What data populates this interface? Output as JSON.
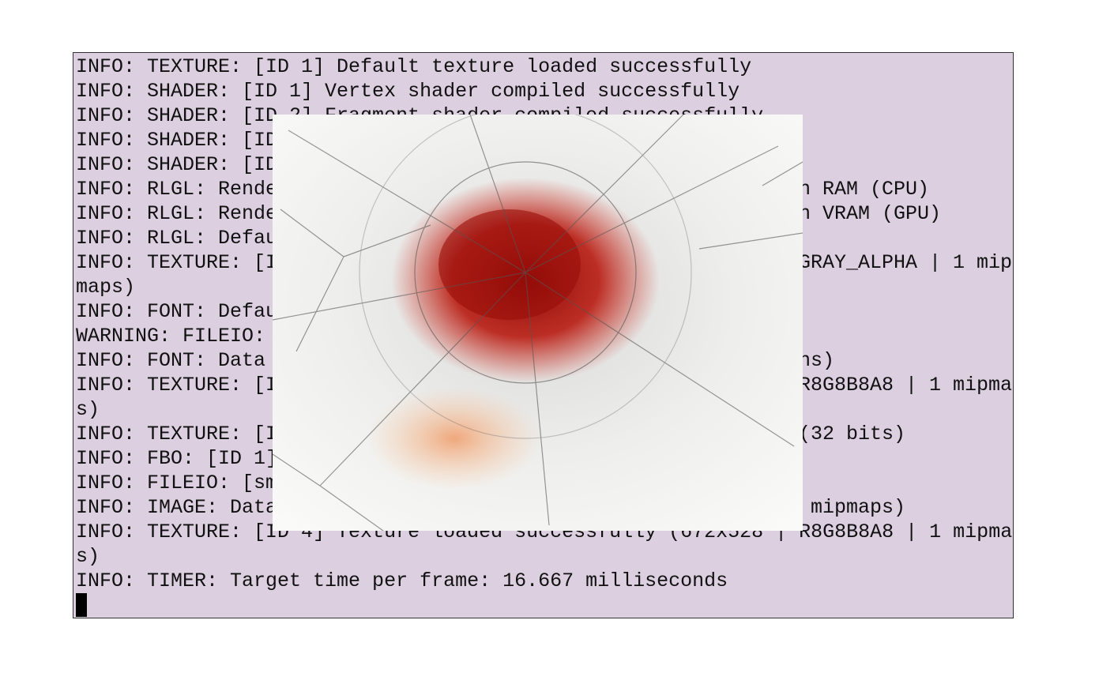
{
  "terminal": {
    "lines": [
      {
        "text": "INFO: TEXTURE: [ID 1] Default texture loaded successfully"
      },
      {
        "text": "INFO: SHADER: [ID 1] Vertex shader compiled successfully"
      },
      {
        "text": "INFO: SHADER: [ID 2] Fragment shader compiled successfully"
      },
      {
        "text": "INFO: SHADER: [ID"
      },
      {
        "text": "INFO: SHADER: [ID"
      },
      {
        "text": "INFO: RLGL: Rende",
        "right": "n RAM (CPU)"
      },
      {
        "text": "INFO: RLGL: Rende",
        "right": "n VRAM (GPU)"
      },
      {
        "text": "INFO: RLGL: Defau"
      },
      {
        "text": "INFO: TEXTURE: [I",
        "right": "GRAY_ALPHA | 1 mip"
      },
      {
        "text": "maps)"
      },
      {
        "text": "INFO: FONT: Defau"
      },
      {
        "text": "WARNING: FILEIO:"
      },
      {
        "text": "INFO: FONT: Data",
        "right": "ns)"
      },
      {
        "text": "INFO: TEXTURE: [I",
        "right": "R8G8B8A8 | 1 mipma"
      },
      {
        "text": "s)"
      },
      {
        "text": "INFO: TEXTURE: [I",
        "right": "(32 bits)"
      },
      {
        "text": "INFO: FBO: [ID 1]"
      },
      {
        "text": "INFO: FILEIO: [sm"
      },
      {
        "text": "INFO: IMAGE: Data",
        "right": " mipmaps)"
      },
      {
        "text": "INFO: TEXTURE: [ID 4] Texture loaded successfully (672x528 | R8G8B8A8 | 1 mipma"
      },
      {
        "text": "s)"
      },
      {
        "text": "INFO: TIMER: Target time per frame: 16.667 milliseconds"
      }
    ]
  }
}
